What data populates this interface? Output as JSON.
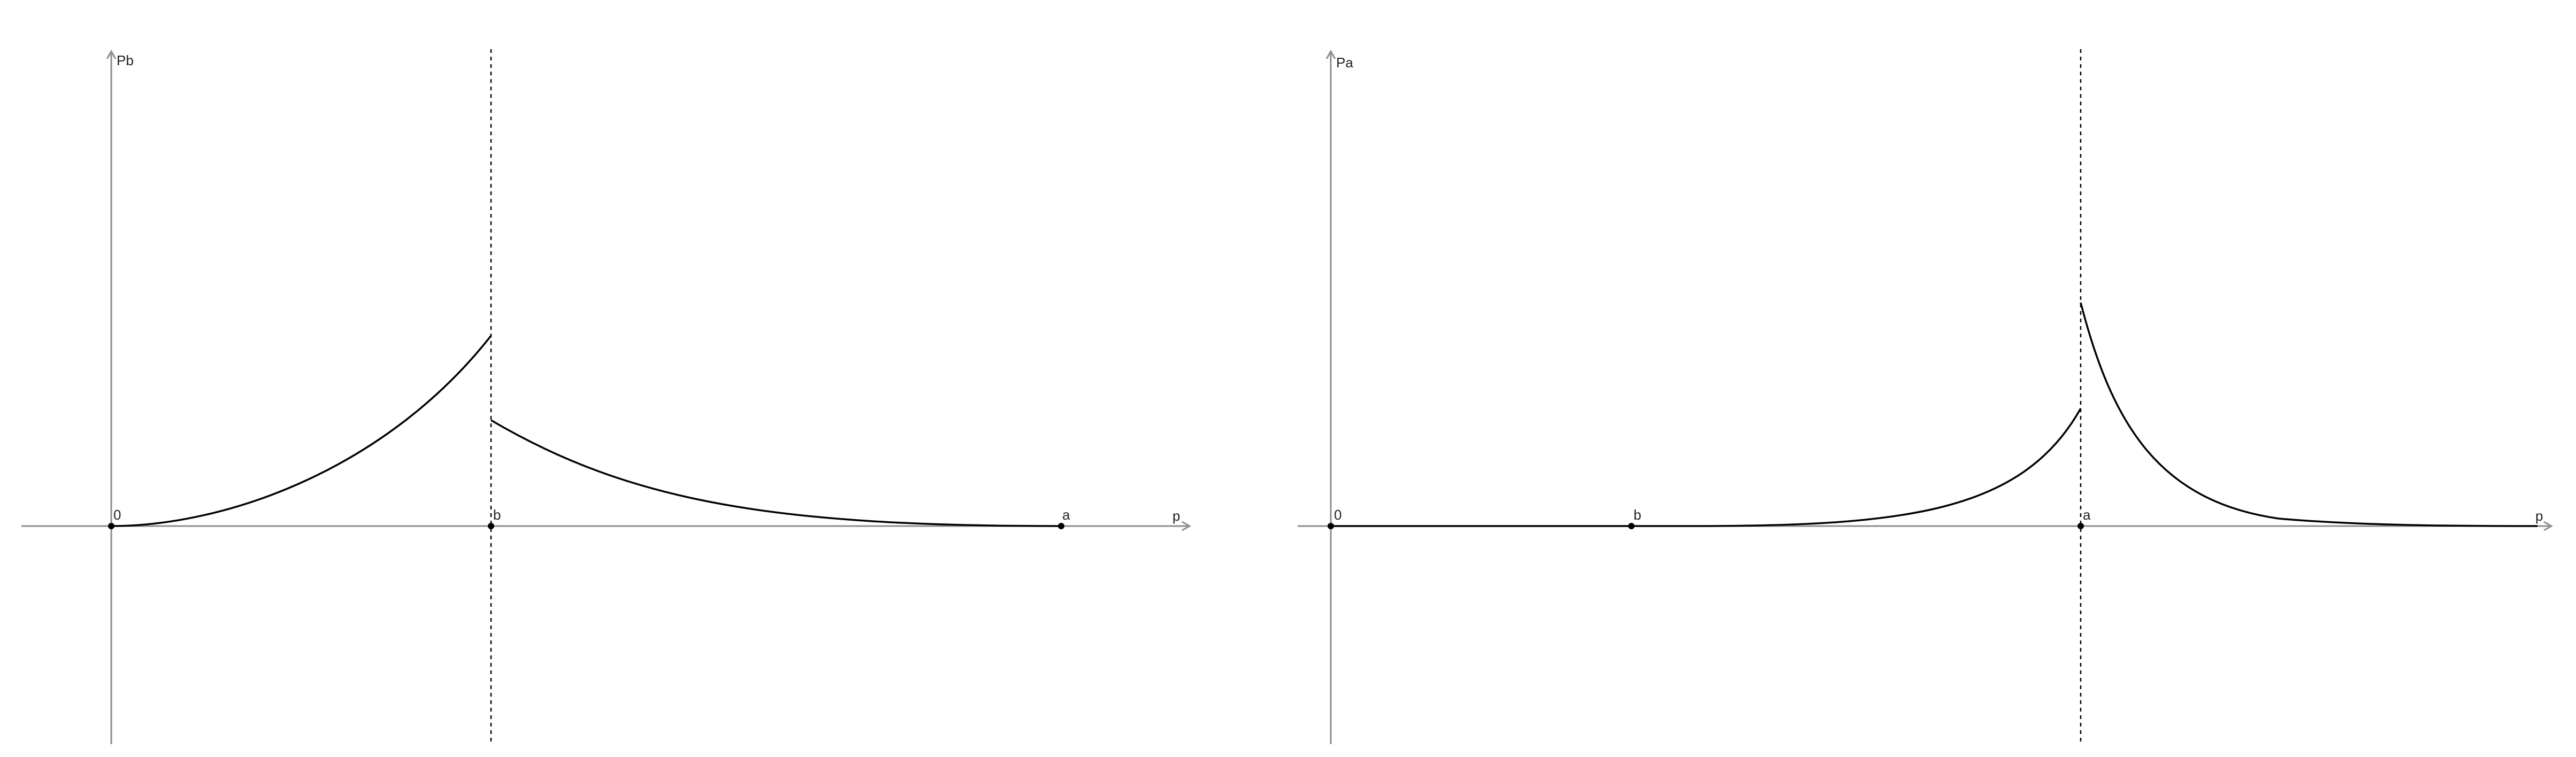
{
  "panels": [
    {
      "id": "left",
      "y_axis_label": "Pb",
      "x_axis_label": "p",
      "origin_label": "0",
      "point_labels": [
        "b",
        "a"
      ],
      "curve": "Pb(p): convex increasing from 0 up to a jump at b, then decaying toward 0 beyond b"
    },
    {
      "id": "right",
      "y_axis_label": "Pa",
      "x_axis_label": "p",
      "origin_label": "0",
      "point_labels": [
        "b",
        "a"
      ],
      "curve": "Pa(p): near 0 until after b, rising to a jump at a, then decaying toward 0"
    }
  ],
  "colors": {
    "axis": "#8c8c8c",
    "curve": "#000000",
    "dashed": "#000000",
    "point": "#000000"
  }
}
